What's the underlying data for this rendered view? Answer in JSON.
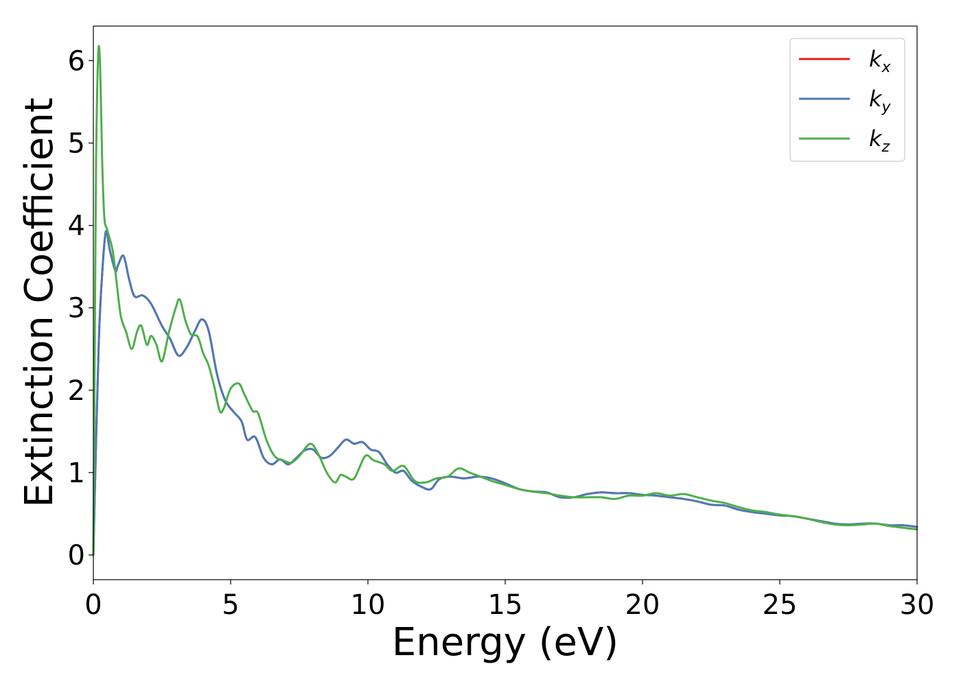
{
  "chart_data": {
    "type": "line",
    "title": "",
    "xlabel": "Energy (eV)",
    "ylabel": "Extinction Coefficient",
    "xlim": [
      0,
      30
    ],
    "ylim": [
      -0.3,
      6.42
    ],
    "xticks": [
      0,
      5,
      10,
      15,
      20,
      25,
      30
    ],
    "yticks": [
      0,
      1,
      2,
      3,
      4,
      5,
      6
    ],
    "grid": false,
    "legend_position": "top-right",
    "series": [
      {
        "name": "k",
        "subscript": "x",
        "color": "#e41a1c",
        "x": [
          0,
          0.1,
          0.2,
          0.3,
          0.45,
          0.6,
          0.8,
          0.9,
          1.1,
          1.3,
          1.5,
          1.8,
          2.1,
          2.5,
          2.8,
          3.1,
          3.4,
          3.7,
          3.95,
          4.2,
          4.5,
          4.8,
          5.1,
          5.4,
          5.6,
          5.9,
          6.2,
          6.5,
          6.8,
          7.1,
          7.4,
          7.7,
          8.0,
          8.3,
          8.6,
          8.9,
          9.2,
          9.5,
          9.8,
          10.1,
          10.4,
          10.7,
          11.0,
          11.3,
          11.6,
          12.0,
          12.3,
          12.6,
          13.0,
          13.5,
          14.0,
          14.5,
          15.0,
          15.5,
          16.0,
          16.5,
          17.0,
          17.5,
          18.0,
          18.5,
          19.0,
          19.5,
          20.0,
          20.5,
          21.0,
          21.5,
          22.0,
          22.5,
          23.0,
          23.5,
          24.0,
          24.5,
          25.0,
          25.5,
          26.0,
          26.5,
          27.0,
          27.5,
          28.0,
          28.5,
          29.0,
          29.5,
          30.0
        ],
        "values": [
          0,
          1.4,
          2.6,
          3.3,
          3.92,
          3.7,
          3.45,
          3.52,
          3.63,
          3.35,
          3.14,
          3.15,
          3.05,
          2.78,
          2.62,
          2.42,
          2.52,
          2.72,
          2.86,
          2.72,
          2.2,
          1.88,
          1.74,
          1.62,
          1.4,
          1.43,
          1.18,
          1.1,
          1.16,
          1.1,
          1.18,
          1.27,
          1.28,
          1.18,
          1.2,
          1.3,
          1.4,
          1.35,
          1.37,
          1.28,
          1.25,
          1.1,
          1.0,
          1.02,
          0.9,
          0.82,
          0.8,
          0.92,
          0.95,
          0.93,
          0.95,
          0.93,
          0.87,
          0.8,
          0.77,
          0.76,
          0.7,
          0.7,
          0.74,
          0.76,
          0.75,
          0.75,
          0.73,
          0.72,
          0.7,
          0.68,
          0.65,
          0.61,
          0.6,
          0.55,
          0.52,
          0.5,
          0.48,
          0.47,
          0.44,
          0.41,
          0.38,
          0.37,
          0.38,
          0.38,
          0.36,
          0.36,
          0.34
        ]
      },
      {
        "name": "k",
        "subscript": "y",
        "color": "#4a7bb7",
        "x": [
          0,
          0.1,
          0.2,
          0.3,
          0.45,
          0.6,
          0.8,
          0.9,
          1.1,
          1.3,
          1.5,
          1.8,
          2.1,
          2.5,
          2.8,
          3.1,
          3.4,
          3.7,
          3.95,
          4.2,
          4.5,
          4.8,
          5.1,
          5.4,
          5.6,
          5.9,
          6.2,
          6.5,
          6.8,
          7.1,
          7.4,
          7.7,
          8.0,
          8.3,
          8.6,
          8.9,
          9.2,
          9.5,
          9.8,
          10.1,
          10.4,
          10.7,
          11.0,
          11.3,
          11.6,
          12.0,
          12.3,
          12.6,
          13.0,
          13.5,
          14.0,
          14.5,
          15.0,
          15.5,
          16.0,
          16.5,
          17.0,
          17.5,
          18.0,
          18.5,
          19.0,
          19.5,
          20.0,
          20.5,
          21.0,
          21.5,
          22.0,
          22.5,
          23.0,
          23.5,
          24.0,
          24.5,
          25.0,
          25.5,
          26.0,
          26.5,
          27.0,
          27.5,
          28.0,
          28.5,
          29.0,
          29.5,
          30.0
        ],
        "values": [
          0,
          1.4,
          2.6,
          3.3,
          3.92,
          3.7,
          3.45,
          3.52,
          3.63,
          3.35,
          3.14,
          3.15,
          3.05,
          2.78,
          2.62,
          2.42,
          2.52,
          2.72,
          2.86,
          2.72,
          2.2,
          1.88,
          1.74,
          1.62,
          1.4,
          1.43,
          1.18,
          1.1,
          1.16,
          1.1,
          1.18,
          1.27,
          1.28,
          1.18,
          1.2,
          1.3,
          1.4,
          1.35,
          1.37,
          1.28,
          1.25,
          1.1,
          1.0,
          1.02,
          0.9,
          0.82,
          0.8,
          0.92,
          0.95,
          0.93,
          0.95,
          0.93,
          0.87,
          0.8,
          0.77,
          0.76,
          0.7,
          0.7,
          0.74,
          0.76,
          0.75,
          0.75,
          0.73,
          0.72,
          0.7,
          0.68,
          0.65,
          0.61,
          0.6,
          0.55,
          0.52,
          0.5,
          0.48,
          0.47,
          0.44,
          0.41,
          0.38,
          0.37,
          0.38,
          0.38,
          0.36,
          0.36,
          0.34
        ]
      },
      {
        "name": "k",
        "subscript": "z",
        "color": "#4daf4a",
        "x": [
          0,
          0.05,
          0.1,
          0.18,
          0.25,
          0.32,
          0.4,
          0.5,
          0.7,
          0.85,
          1.0,
          1.2,
          1.4,
          1.6,
          1.75,
          1.95,
          2.1,
          2.3,
          2.5,
          2.75,
          3.0,
          3.15,
          3.35,
          3.55,
          3.8,
          4.0,
          4.2,
          4.4,
          4.6,
          4.75,
          5.0,
          5.3,
          5.5,
          5.8,
          6.0,
          6.3,
          6.6,
          6.9,
          7.2,
          7.5,
          7.9,
          8.2,
          8.5,
          8.8,
          9.0,
          9.2,
          9.5,
          9.9,
          10.2,
          10.6,
          10.9,
          11.3,
          11.7,
          12.1,
          12.5,
          12.9,
          13.3,
          13.7,
          14.1,
          14.5,
          15.0,
          15.5,
          16.0,
          16.5,
          17.0,
          17.5,
          18.0,
          18.5,
          19.0,
          19.5,
          20.0,
          20.5,
          21.0,
          21.5,
          22.0,
          22.5,
          23.0,
          23.5,
          24.0,
          24.5,
          25.0,
          25.5,
          26.0,
          26.5,
          27.0,
          27.5,
          28.0,
          28.5,
          29.0,
          29.5,
          30.0
        ],
        "values": [
          0,
          2.5,
          4.8,
          6.1,
          5.9,
          4.8,
          4.1,
          3.95,
          3.7,
          3.3,
          2.9,
          2.7,
          2.5,
          2.72,
          2.78,
          2.55,
          2.66,
          2.55,
          2.35,
          2.7,
          3.0,
          3.1,
          2.85,
          2.68,
          2.65,
          2.45,
          2.3,
          2.05,
          1.75,
          1.78,
          2.02,
          2.08,
          1.95,
          1.75,
          1.72,
          1.4,
          1.2,
          1.15,
          1.12,
          1.2,
          1.35,
          1.22,
          1.0,
          0.88,
          0.97,
          0.95,
          0.93,
          1.2,
          1.15,
          1.1,
          1.02,
          1.08,
          0.9,
          0.88,
          0.93,
          0.95,
          1.05,
          1.0,
          0.95,
          0.9,
          0.85,
          0.8,
          0.77,
          0.75,
          0.72,
          0.7,
          0.7,
          0.7,
          0.68,
          0.72,
          0.72,
          0.75,
          0.72,
          0.74,
          0.7,
          0.66,
          0.63,
          0.58,
          0.54,
          0.52,
          0.49,
          0.47,
          0.44,
          0.4,
          0.37,
          0.36,
          0.37,
          0.38,
          0.35,
          0.33,
          0.31
        ]
      }
    ]
  }
}
